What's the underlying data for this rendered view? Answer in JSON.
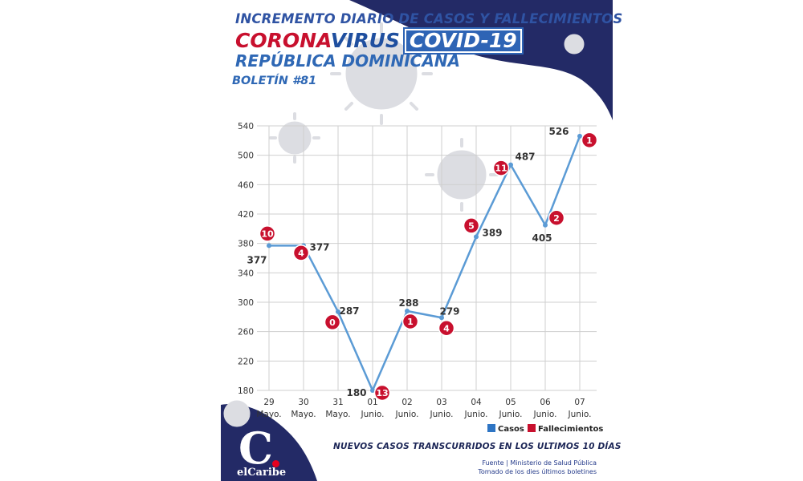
{
  "header": {
    "line1": "INCREMENTO DIARIO DE CASOS Y FALLECIMIENTOS",
    "corona": "CORONA",
    "virus": "VIRUS",
    "covid": "COVID-19",
    "country": "REPÚBLICA DOMINICANA",
    "bulletin": "BOLETÍN #81"
  },
  "colors": {
    "navy": "#232a66",
    "line": "#5b9bd5",
    "badge": "#c8102e",
    "grid": "#cfcfcf",
    "virus": "#dcdde2"
  },
  "chart_data": {
    "type": "line",
    "categories": [
      [
        "29",
        "Mayo."
      ],
      [
        "30",
        "Mayo."
      ],
      [
        "31",
        "Mayo."
      ],
      [
        "01",
        "Junio."
      ],
      [
        "02",
        "Junio."
      ],
      [
        "03",
        "Junio."
      ],
      [
        "04",
        "Junio."
      ],
      [
        "05",
        "Junio."
      ],
      [
        "06",
        "Junio."
      ],
      [
        "07",
        "Junio."
      ]
    ],
    "series": [
      {
        "name": "Casos",
        "values": [
          377,
          377,
          287,
          180,
          288,
          279,
          389,
          487,
          405,
          526
        ]
      },
      {
        "name": "Fallecimientos",
        "values": [
          10,
          4,
          0,
          13,
          1,
          4,
          5,
          11,
          2,
          1
        ]
      }
    ],
    "ylim": [
      180,
      540
    ],
    "yticks": [
      180,
      220,
      260,
      300,
      340,
      380,
      420,
      460,
      500,
      540
    ],
    "grid": true,
    "legend": "bottom-right"
  },
  "legend": {
    "casos": "Casos",
    "fallecimientos": "Fallecimientos"
  },
  "footer": {
    "caption": "NUEVOS CASOS TRANSCURRIDOS EN LOS ULTIMOS 10 DÍAS",
    "source1": "Fuente | Ministerio de Salud Pública",
    "source2": "Tomado de  los dies últimos boletines",
    "logo_letter": "C",
    "logo_name": "elCaribe"
  }
}
